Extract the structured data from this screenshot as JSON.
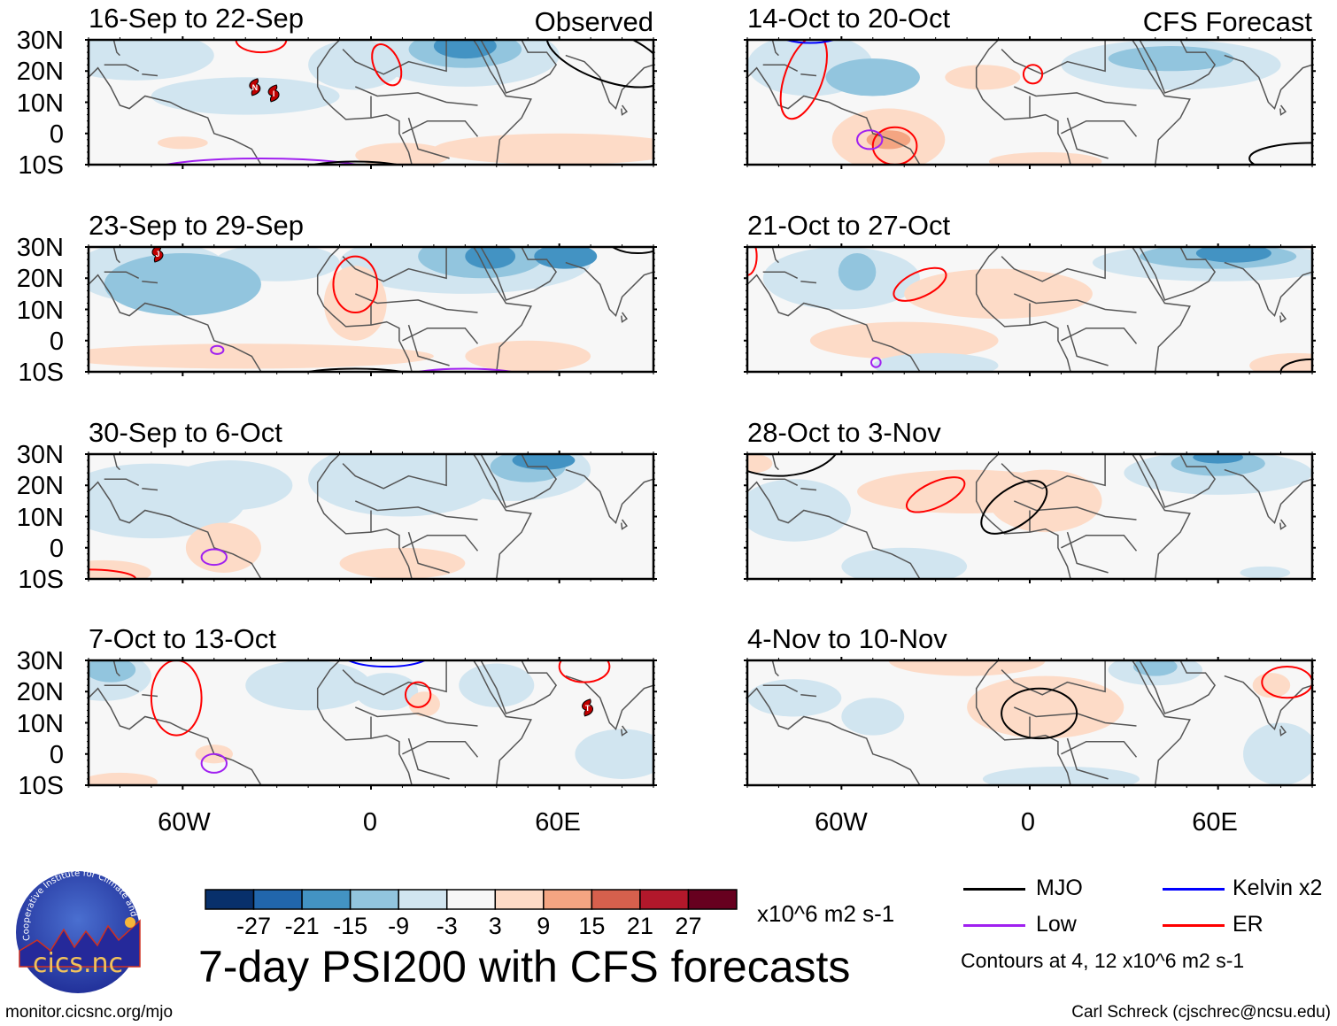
{
  "chart_data": {
    "type": "heatmap",
    "title": "7-day PSI200 with CFS forecasts",
    "variable": "PSI200 anomaly",
    "units": "x10^6 m2 s-1",
    "xlabel": "",
    "ylabel": "",
    "x_range": [
      "90W",
      "90E"
    ],
    "y_range": [
      "10S",
      "30N"
    ],
    "x_ticks": [
      "60W",
      "0",
      "60E"
    ],
    "y_ticks": [
      "30N",
      "20N",
      "10N",
      "0",
      "10S"
    ],
    "grid": false,
    "colorbar": {
      "levels": [
        -27,
        -21,
        -15,
        -9,
        -3,
        3,
        9,
        15,
        21,
        27
      ],
      "colors": [
        "#08306b",
        "#2166ac",
        "#4393c3",
        "#92c5de",
        "#d1e5f0",
        "#f7f7f7",
        "#fddbc7",
        "#f4a582",
        "#d6604d",
        "#b2182b",
        "#67001f"
      ],
      "placement": "bottom-center"
    },
    "legend": {
      "placement": "bottom-right",
      "entries": [
        {
          "name": "MJO",
          "color": "#000000"
        },
        {
          "name": "Kelvin x2",
          "color": "#0000ff"
        },
        {
          "name": "Low",
          "color": "#a020f0"
        },
        {
          "name": "ER",
          "color": "#ff0000"
        }
      ],
      "note": "Contours at 4, 12 x10^6 m2 s-1"
    },
    "panels": [
      {
        "column": "Observed",
        "period": "16-Sep to 22-Sep",
        "tag": "Observed",
        "storms": [
          {
            "label": "N",
            "lon": -37,
            "lat": 15
          },
          {
            "label": "I",
            "lon": -31,
            "lat": 13
          }
        ]
      },
      {
        "column": "Observed",
        "period": "23-Sep to 29-Sep",
        "tag": "",
        "storms": [
          {
            "label": "J",
            "lon": -68,
            "lat": 28
          }
        ]
      },
      {
        "column": "Observed",
        "period": "30-Sep to 6-Oct",
        "tag": "",
        "storms": []
      },
      {
        "column": "Observed",
        "period": "7-Oct to 13-Oct",
        "tag": "",
        "storms": [
          {
            "label": "T",
            "lon": 69,
            "lat": 15
          }
        ]
      },
      {
        "column": "CFS Forecast",
        "period": "14-Oct to 20-Oct",
        "tag": "CFS Forecast",
        "storms": []
      },
      {
        "column": "CFS Forecast",
        "period": "21-Oct to 27-Oct",
        "tag": "",
        "storms": []
      },
      {
        "column": "CFS Forecast",
        "period": "28-Oct to 3-Nov",
        "tag": "",
        "storms": []
      },
      {
        "column": "CFS Forecast",
        "period": "4-Nov to 10-Nov",
        "tag": "",
        "storms": []
      }
    ]
  },
  "colorbar_labels": [
    "-27",
    "-21",
    "-15",
    "-9",
    "-3",
    "3",
    "9",
    "15",
    "21",
    "27"
  ],
  "units_label": "x10^6 m2 s-1",
  "legend_labels": {
    "mjo": "MJO",
    "kelvin": "Kelvin x2",
    "low": "Low",
    "er": "ER"
  },
  "contours_note": "Contours at 4, 12 x10^6 m2 s-1",
  "logo": {
    "text": "cics.nc",
    "ring_text": "Cooperative Institute for Climate and Satellites"
  },
  "footer": {
    "left": "monitor.cicsnc.org/mjo",
    "right": "Carl Schreck (cjschrec@ncsu.edu)"
  },
  "axis": {
    "y": [
      "30N",
      "20N",
      "10N",
      "0",
      "10S"
    ],
    "x": [
      "60W",
      "0",
      "60E"
    ]
  }
}
